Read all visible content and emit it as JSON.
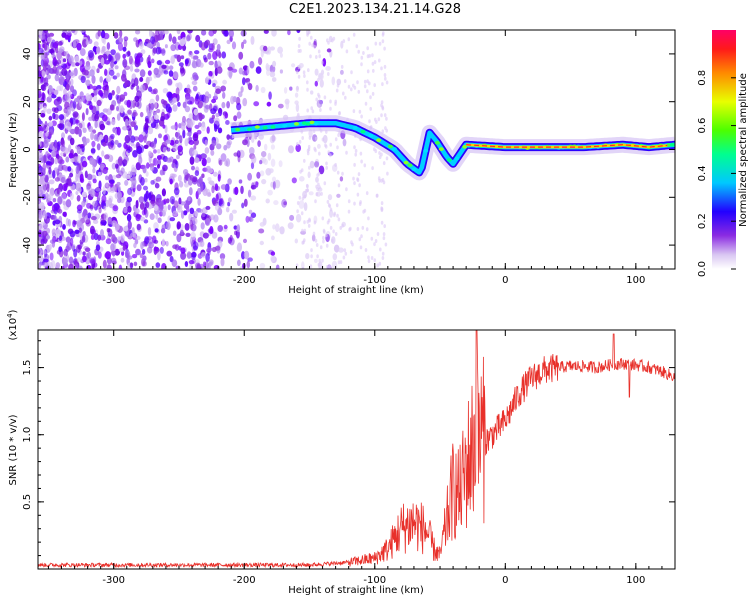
{
  "title": "C2E1.2023.134.21.14.G28",
  "chart_data": [
    {
      "type": "heatmap",
      "xlabel": "Height of straight line (km)",
      "ylabel": "Frequency (Hz)",
      "xlim": [
        -358,
        130
      ],
      "ylim": [
        -50,
        50
      ],
      "xticks": [
        -300,
        -200,
        -100,
        0,
        100
      ],
      "yticks": [
        -40,
        -20,
        0,
        20,
        40
      ],
      "colorbar": {
        "label": "Normalized spectral amplitude",
        "range": [
          0.0,
          1.0
        ],
        "ticks": [
          "0.0",
          "0.2",
          "0.4",
          "0.6",
          "0.8"
        ]
      },
      "signal_trace": {
        "x": [
          -210,
          -190,
          -170,
          -150,
          -130,
          -115,
          -100,
          -85,
          -75,
          -65,
          -58,
          -52,
          -45,
          -40,
          -30,
          0,
          30,
          60,
          90,
          110,
          130
        ],
        "y": [
          8,
          9,
          10,
          11,
          11,
          9,
          5,
          0,
          -6,
          -10,
          7,
          3,
          -3,
          -6,
          2,
          1,
          1,
          1,
          2,
          1,
          2
        ]
      }
    },
    {
      "type": "line",
      "xlabel": "Height of straight line (km)",
      "ylabel": "SNR (10 * v/v)",
      "multiplier_label": "(x10",
      "multiplier_exp": "4",
      "xlim": [
        -358,
        130
      ],
      "ylim": [
        0,
        1.78
      ],
      "xticks": [
        -300,
        -200,
        -100,
        0,
        100
      ],
      "yticks": [
        "0.5",
        "1.0",
        "1.5"
      ],
      "color": "#e8302a",
      "x": [
        -358,
        -300,
        -200,
        -150,
        -120,
        -100,
        -90,
        -80,
        -70,
        -60,
        -55,
        -50,
        -45,
        -40,
        -35,
        -30,
        -25,
        -20,
        -15,
        -10,
        -5,
        0,
        10,
        20,
        30,
        40,
        50,
        60,
        70,
        80,
        90,
        100,
        110,
        120,
        130
      ],
      "y": [
        0.03,
        0.03,
        0.03,
        0.03,
        0.05,
        0.08,
        0.15,
        0.3,
        0.35,
        0.28,
        0.15,
        0.1,
        0.35,
        0.6,
        0.55,
        0.75,
        0.9,
        1.0,
        0.95,
        1.0,
        1.05,
        1.1,
        1.3,
        1.42,
        1.48,
        1.5,
        1.51,
        1.51,
        1.5,
        1.52,
        1.53,
        1.52,
        1.5,
        1.47,
        1.43
      ]
    }
  ]
}
